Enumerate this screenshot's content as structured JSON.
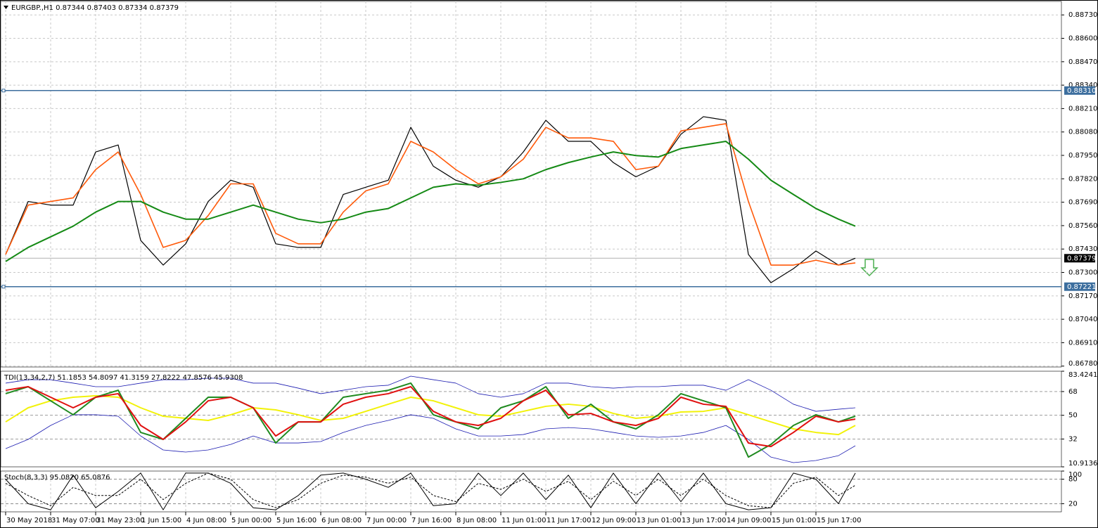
{
  "chart_data": [
    {
      "type": "line",
      "title": "EURGBP.,H1  0.87344 0.87403 0.87334 0.87379",
      "x": [
        0,
        8,
        16,
        24,
        32,
        40,
        48,
        56,
        64,
        72,
        80,
        88,
        96,
        104,
        112,
        120,
        128,
        136,
        144,
        152,
        160,
        168,
        176,
        184,
        192,
        200,
        208,
        216,
        224,
        232,
        240,
        248,
        256,
        264,
        272,
        280,
        288,
        296,
        302
      ],
      "xlim": [
        -1,
        376
      ],
      "ylim": [
        0.86775,
        0.88805
      ],
      "yticks": [
        {
          "value": 0.8873,
          "label": "0.88730"
        },
        {
          "value": 0.886,
          "label": "0.88600"
        },
        {
          "value": 0.8847,
          "label": "0.88470"
        },
        {
          "value": 0.8834,
          "label": "0.88340"
        },
        {
          "value": 0.8821,
          "label": "0.88210"
        },
        {
          "value": 0.8808,
          "label": "0.88080"
        },
        {
          "value": 0.8795,
          "label": "0.87950"
        },
        {
          "value": 0.8782,
          "label": "0.87820"
        },
        {
          "value": 0.8769,
          "label": "0.87690"
        },
        {
          "value": 0.8756,
          "label": "0.87560"
        },
        {
          "value": 0.8743,
          "label": "0.87430"
        },
        {
          "value": 0.873,
          "label": "0.87300"
        },
        {
          "value": 0.8717,
          "label": "0.87170"
        },
        {
          "value": 0.8704,
          "label": "0.87040"
        },
        {
          "value": 0.8691,
          "label": "0.86910"
        },
        {
          "value": 0.8678,
          "label": "0.86780"
        }
      ],
      "grid": true,
      "levels": [
        {
          "value": 0.8831,
          "label": "0.88310",
          "color": "#3c6e9e"
        },
        {
          "value": 0.87221,
          "label": "0.87221",
          "color": "#3c6e9e"
        }
      ],
      "bid": {
        "value": 0.87379,
        "label": "0.87379",
        "color": "#b0b0b0"
      },
      "series": [
        {
          "color": "#000000",
          "width": 1.2,
          "values": [
            0.874,
            0.87694,
            0.87674,
            0.87674,
            0.87969,
            0.88008,
            0.87478,
            0.87341,
            0.87459,
            0.87694,
            0.87812,
            0.87773,
            0.87459,
            0.87439,
            0.87439,
            0.87733,
            0.87773,
            0.87812,
            0.88106,
            0.8789,
            0.87812,
            0.87773,
            0.87831,
            0.87969,
            0.88145,
            0.88028,
            0.88028,
            0.8791,
            0.87831,
            0.8789,
            0.88067,
            0.88165,
            0.88145,
            0.874,
            0.87243,
            0.87321,
            0.87419,
            0.87341,
            0.87379
          ]
        },
        {
          "color": "#ff5a0a",
          "width": 1.6,
          "values": [
            0.874,
            0.87674,
            0.87694,
            0.87714,
            0.87871,
            0.87969,
            0.87733,
            0.87439,
            0.87478,
            0.87616,
            0.87792,
            0.87792,
            0.87517,
            0.87459,
            0.87459,
            0.87635,
            0.87753,
            0.87792,
            0.88028,
            0.87969,
            0.87871,
            0.87792,
            0.87831,
            0.87929,
            0.88106,
            0.88047,
            0.88047,
            0.88028,
            0.87871,
            0.8789,
            0.88086,
            0.88106,
            0.88126,
            0.87694,
            0.87341,
            0.87341,
            0.87368,
            0.87341,
            0.87353
          ]
        },
        {
          "color": "#158a15",
          "width": 2,
          "values": [
            0.87361,
            0.87439,
            0.87498,
            0.87557,
            0.87635,
            0.87694,
            0.87694,
            0.87635,
            0.87596,
            0.87596,
            0.87635,
            0.87674,
            0.87635,
            0.87596,
            0.87576,
            0.87596,
            0.87635,
            0.87655,
            0.87714,
            0.87773,
            0.87792,
            0.87784,
            0.878,
            0.8782,
            0.87871,
            0.8791,
            0.87941,
            0.87969,
            0.87949,
            0.87941,
            0.87988,
            0.88008,
            0.88028,
            0.87929,
            0.87812,
            0.87733,
            0.87655,
            0.87596,
            0.87557
          ]
        }
      ]
    },
    {
      "type": "line",
      "title": "TDI(13,34,2,7) 51.1853 54.8097 41.3159 27.8222 47.8576 45.9308",
      "x": [
        0,
        8,
        16,
        24,
        32,
        40,
        48,
        56,
        64,
        72,
        80,
        88,
        96,
        104,
        112,
        120,
        128,
        136,
        144,
        152,
        160,
        168,
        176,
        184,
        192,
        200,
        208,
        216,
        224,
        232,
        240,
        248,
        256,
        264,
        272,
        280,
        288,
        296,
        302
      ],
      "xlim": [
        -1,
        376
      ],
      "ylim": [
        10.9136,
        83.4241
      ],
      "yticks": [
        83.4241,
        68,
        50,
        32,
        10.9136
      ],
      "dashed_levels": [
        68,
        50,
        32
      ],
      "series": [
        {
          "color": "#1a1ab0",
          "width": 0.8,
          "values": [
            74.4,
            77.0,
            77.0,
            74.4,
            71.7,
            71.7,
            74.4,
            77.0,
            77.0,
            78.1,
            78.1,
            74.4,
            74.4,
            70.6,
            66.4,
            69.0,
            71.7,
            72.8,
            79.7,
            77.0,
            74.4,
            66.4,
            63.7,
            66.4,
            74.4,
            74.4,
            71.7,
            70.6,
            71.7,
            71.7,
            72.8,
            72.8,
            69.0,
            77.0,
            69.0,
            58.4,
            53.0,
            54.6,
            55.7
          ]
        },
        {
          "color": "#1a1ab0",
          "width": 0.8,
          "values": [
            24.7,
            31.7,
            42.3,
            50.4,
            50.4,
            49.3,
            34.3,
            23.7,
            22.1,
            23.7,
            27.9,
            34.3,
            29.0,
            29.0,
            30.1,
            37.0,
            42.3,
            46.1,
            50.4,
            47.7,
            39.7,
            34.3,
            34.3,
            35.4,
            39.7,
            40.7,
            39.7,
            37.0,
            34.3,
            33.3,
            34.3,
            37.0,
            42.3,
            31.7,
            18.3,
            14.1,
            15.7,
            19.4,
            26.9
          ]
        },
        {
          "color": "#f2f20a",
          "width": 2,
          "values": [
            45.0,
            55.7,
            61.0,
            63.7,
            64.8,
            63.7,
            55.7,
            49.3,
            47.7,
            46.1,
            50.4,
            55.7,
            54.1,
            50.4,
            46.1,
            47.7,
            53.0,
            58.4,
            63.7,
            61.0,
            55.7,
            50.4,
            49.3,
            53.0,
            56.8,
            58.4,
            56.8,
            51.4,
            47.7,
            49.3,
            52.5,
            53.0,
            55.7,
            50.4,
            45.0,
            39.7,
            37.0,
            35.4,
            42.3
          ]
        },
        {
          "color": "#1f8a1f",
          "width": 2,
          "values": [
            66.4,
            71.7,
            61.0,
            50.4,
            63.7,
            69.0,
            37.0,
            31.7,
            47.7,
            63.7,
            63.7,
            55.7,
            29.0,
            45.0,
            45.0,
            63.7,
            66.4,
            69.0,
            74.4,
            50.4,
            45.0,
            39.7,
            55.7,
            61.0,
            71.7,
            47.7,
            58.4,
            45.0,
            39.7,
            50.4,
            66.4,
            61.0,
            55.7,
            18.3,
            27.9,
            42.3,
            50.4,
            45.0,
            49.3
          ]
        },
        {
          "color": "#e01010",
          "width": 2,
          "values": [
            69.0,
            71.7,
            63.7,
            55.7,
            63.7,
            66.4,
            42.3,
            31.7,
            45.0,
            61.0,
            63.7,
            55.7,
            34.3,
            45.0,
            45.0,
            58.4,
            63.7,
            66.4,
            71.7,
            53.0,
            45.0,
            42.3,
            47.7,
            61.0,
            69.0,
            50.4,
            51.4,
            45.0,
            42.3,
            47.7,
            63.7,
            58.4,
            56.8,
            29.0,
            26.3,
            37.0,
            49.3,
            45.0,
            47.1
          ]
        }
      ]
    },
    {
      "type": "line",
      "title": "Stoch(8,3,3) 95.0820 65.0876",
      "x": [
        0,
        8,
        16,
        24,
        32,
        40,
        48,
        56,
        64,
        72,
        80,
        88,
        96,
        104,
        112,
        120,
        128,
        136,
        144,
        152,
        160,
        168,
        176,
        184,
        192,
        200,
        208,
        216,
        224,
        232,
        240,
        248,
        256,
        264,
        272,
        280,
        288,
        296,
        302
      ],
      "xlim": [
        -1,
        376
      ],
      "ylim": [
        0,
        100
      ],
      "yticks": [
        100,
        80,
        20
      ],
      "dashed_levels": [
        80,
        20
      ],
      "xticks": [
        {
          "value": 0,
          "label": "30 May 2018"
        },
        {
          "value": 16,
          "label": "31 May 07:00"
        },
        {
          "value": 32,
          "label": "31 May 23:00"
        },
        {
          "value": 48,
          "label": "1 Jun 15:00"
        },
        {
          "value": 64,
          "label": "4 Jun 08:00"
        },
        {
          "value": 80,
          "label": "5 Jun 00:00"
        },
        {
          "value": 96,
          "label": "5 Jun 16:00"
        },
        {
          "value": 112,
          "label": "6 Jun 08:00"
        },
        {
          "value": 128,
          "label": "7 Jun 00:00"
        },
        {
          "value": 144,
          "label": "7 Jun 16:00"
        },
        {
          "value": 160,
          "label": "8 Jun 08:00"
        },
        {
          "value": 176,
          "label": "11 Jun 01:00"
        },
        {
          "value": 192,
          "label": "11 Jun 17:00"
        },
        {
          "value": 208,
          "label": "12 Jun 09:00"
        },
        {
          "value": 224,
          "label": "13 Jun 01:00"
        },
        {
          "value": 240,
          "label": "13 Jun 17:00"
        },
        {
          "value": 256,
          "label": "14 Jun 09:00"
        },
        {
          "value": 272,
          "label": "15 Jun 01:00"
        },
        {
          "value": 288,
          "label": "15 Jun 17:00"
        }
      ],
      "series": [
        {
          "color": "#000000",
          "width": 1,
          "values": [
            80,
            20,
            5,
            90,
            10,
            50,
            95,
            5,
            95,
            95,
            70,
            10,
            5,
            40,
            90,
            95,
            80,
            60,
            95,
            15,
            20,
            95,
            40,
            95,
            30,
            90,
            10,
            95,
            20,
            95,
            25,
            95,
            20,
            5,
            10,
            95,
            80,
            20,
            95.1
          ]
        },
        {
          "color": "#000000",
          "width": 1,
          "dash": true,
          "values": [
            70,
            40,
            15,
            60,
            40,
            40,
            80,
            30,
            70,
            95,
            80,
            30,
            10,
            30,
            70,
            90,
            85,
            70,
            85,
            40,
            25,
            70,
            55,
            80,
            50,
            75,
            30,
            75,
            40,
            80,
            40,
            80,
            40,
            15,
            10,
            70,
            85,
            40,
            65.1
          ]
        }
      ]
    }
  ]
}
